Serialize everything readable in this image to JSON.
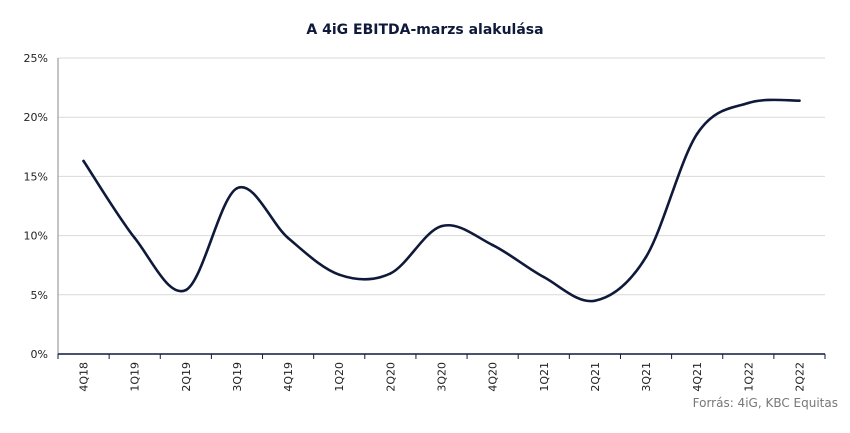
{
  "chart_data": {
    "type": "line",
    "title": "A 4iG EBITDA-marzs alakulása",
    "xlabel": "",
    "ylabel": "",
    "categories": [
      "4Q18",
      "1Q19",
      "2Q19",
      "3Q19",
      "4Q19",
      "1Q20",
      "2Q20",
      "3Q20",
      "4Q20",
      "1Q21",
      "2Q21",
      "3Q21",
      "4Q21",
      "1Q22",
      "2Q22"
    ],
    "series": [
      {
        "values": [
          16.3,
          9.8,
          5.4,
          14.0,
          9.8,
          6.7,
          6.8,
          10.8,
          9.2,
          6.5,
          4.5,
          8.2,
          18.6,
          21.2,
          21.4
        ]
      }
    ],
    "ylim": [
      0,
      25
    ],
    "yticks": [
      0,
      5,
      10,
      15,
      20,
      25
    ],
    "ytick_labels": [
      "0%",
      "5%",
      "10%",
      "15%",
      "20%",
      "25%"
    ],
    "grid": true,
    "line_color": "#0f1a3a",
    "grid_color": "#d9d9d9"
  },
  "source": "Forrás: 4iG, KBC Equitas"
}
